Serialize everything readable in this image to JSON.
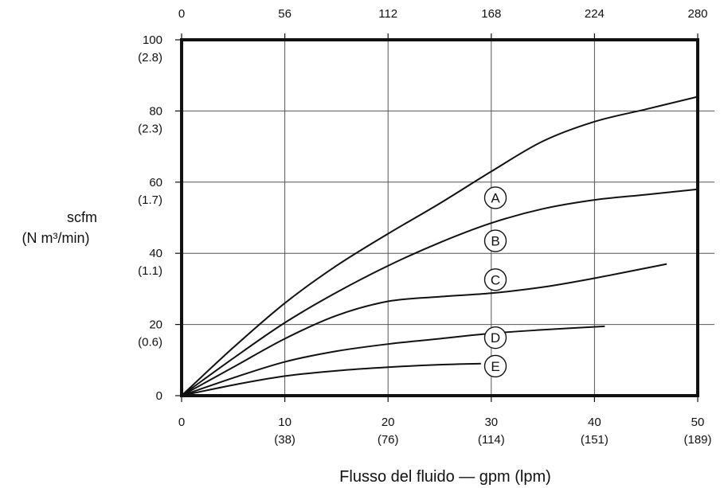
{
  "chart_data": {
    "type": "line",
    "xlabel": "Flusso del fluido — gpm (lpm)",
    "ylabel": "scfm",
    "ylabel_sub": "(N m³/min)",
    "xlim": [
      0,
      50
    ],
    "ylim": [
      0,
      100
    ],
    "grid": true,
    "x_ticks": [
      {
        "value": 0,
        "label": "0",
        "sub": ""
      },
      {
        "value": 10,
        "label": "10",
        "sub": "(38)"
      },
      {
        "value": 20,
        "label": "20",
        "sub": "(76)"
      },
      {
        "value": 30,
        "label": "30",
        "sub": "(114)"
      },
      {
        "value": 40,
        "label": "40",
        "sub": "(151)"
      },
      {
        "value": 50,
        "label": "50",
        "sub": "(189)"
      }
    ],
    "top_ticks": [
      {
        "value": 0,
        "label": "0"
      },
      {
        "value": 10,
        "label": "56"
      },
      {
        "value": 20,
        "label": "112"
      },
      {
        "value": 30,
        "label": "168"
      },
      {
        "value": 40,
        "label": "224"
      },
      {
        "value": 50,
        "label": "280"
      }
    ],
    "y_ticks": [
      {
        "value": 0,
        "label": "0",
        "sub": ""
      },
      {
        "value": 20,
        "label": "20",
        "sub": "(0.6)"
      },
      {
        "value": 40,
        "label": "40",
        "sub": "(1.1)"
      },
      {
        "value": 60,
        "label": "60",
        "sub": "(1.7)"
      },
      {
        "value": 80,
        "label": "80",
        "sub": "(2.3)"
      },
      {
        "value": 100,
        "label": "100",
        "sub": "(2.8)"
      }
    ],
    "series": [
      {
        "name": "A",
        "label_at": [
          25,
          55.6
        ],
        "x": [
          0,
          5,
          10,
          15,
          20,
          25,
          30,
          35,
          40,
          45,
          50
        ],
        "y": [
          0,
          13.5,
          26,
          36.5,
          45.5,
          54,
          63,
          71.5,
          77,
          80.5,
          84
        ]
      },
      {
        "name": "B",
        "label_at": [
          25,
          43.5
        ],
        "x": [
          0,
          5,
          10,
          15,
          20,
          25,
          30,
          35,
          40,
          45,
          50
        ],
        "y": [
          0,
          10.5,
          20.5,
          29,
          36.5,
          43,
          48.5,
          52.5,
          55,
          56.5,
          58
        ]
      },
      {
        "name": "C",
        "label_at": [
          25,
          32.6
        ],
        "x": [
          0,
          5,
          10,
          15,
          20,
          25,
          30,
          35,
          40,
          47
        ],
        "y": [
          0,
          8,
          16,
          22.5,
          26.5,
          27.8,
          28.8,
          30.5,
          33,
          37
        ]
      },
      {
        "name": "D",
        "label_at": [
          25,
          16.3
        ],
        "x": [
          0,
          5,
          10,
          15,
          20,
          25,
          30,
          35,
          41
        ],
        "y": [
          0,
          5,
          9.5,
          12.5,
          14.5,
          16,
          17.5,
          18.5,
          19.5
        ]
      },
      {
        "name": "E",
        "label_at": [
          25,
          8.3
        ],
        "x": [
          0,
          5,
          10,
          15,
          20,
          25,
          29
        ],
        "y": [
          0,
          3,
          5.5,
          7,
          8,
          8.7,
          9
        ]
      }
    ]
  }
}
